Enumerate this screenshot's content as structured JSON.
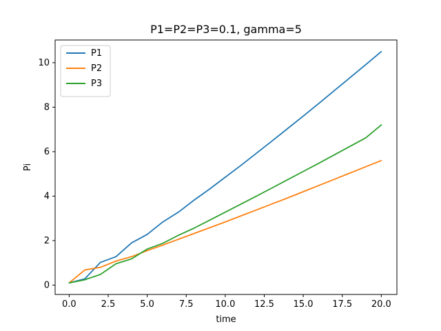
{
  "chart_data": {
    "type": "line",
    "title": "P1=P2=P3=0.1, gamma=5",
    "xlabel": "time",
    "ylabel": "Pi",
    "xlim": [
      -0.9,
      21.0
    ],
    "ylim": [
      -0.42,
      11.02
    ],
    "xticks": [
      "0.0",
      "2.5",
      "5.0",
      "7.5",
      "10.0",
      "12.5",
      "15.0",
      "17.5",
      "20.0"
    ],
    "yticks": [
      "0",
      "2",
      "4",
      "6",
      "8",
      "10"
    ],
    "grid": false,
    "legend_position": "upper left",
    "x": [
      0,
      1,
      2,
      3,
      4,
      5,
      6,
      7,
      8,
      9,
      10,
      11,
      12,
      13,
      14,
      15,
      16,
      17,
      18,
      19,
      20
    ],
    "series": [
      {
        "name": "P1",
        "color": "#1f77b4",
        "values": [
          0.1,
          0.28,
          1.02,
          1.28,
          1.9,
          2.28,
          2.84,
          3.28,
          3.82,
          4.32,
          4.85,
          5.38,
          5.93,
          6.48,
          7.04,
          7.6,
          8.17,
          8.75,
          9.33,
          9.91,
          10.5
        ]
      },
      {
        "name": "P2",
        "color": "#ff7f0e",
        "values": [
          0.1,
          0.68,
          0.8,
          1.08,
          1.28,
          1.55,
          1.8,
          2.06,
          2.32,
          2.58,
          2.84,
          3.11,
          3.38,
          3.65,
          3.92,
          4.2,
          4.48,
          4.76,
          5.04,
          5.32,
          5.6
        ]
      },
      {
        "name": "P3",
        "color": "#2ca02c",
        "values": [
          0.1,
          0.24,
          0.48,
          0.96,
          1.18,
          1.62,
          1.88,
          2.24,
          2.56,
          2.92,
          3.28,
          3.64,
          4.0,
          4.37,
          4.74,
          5.11,
          5.48,
          5.86,
          6.24,
          6.62,
          7.2
        ]
      }
    ]
  }
}
